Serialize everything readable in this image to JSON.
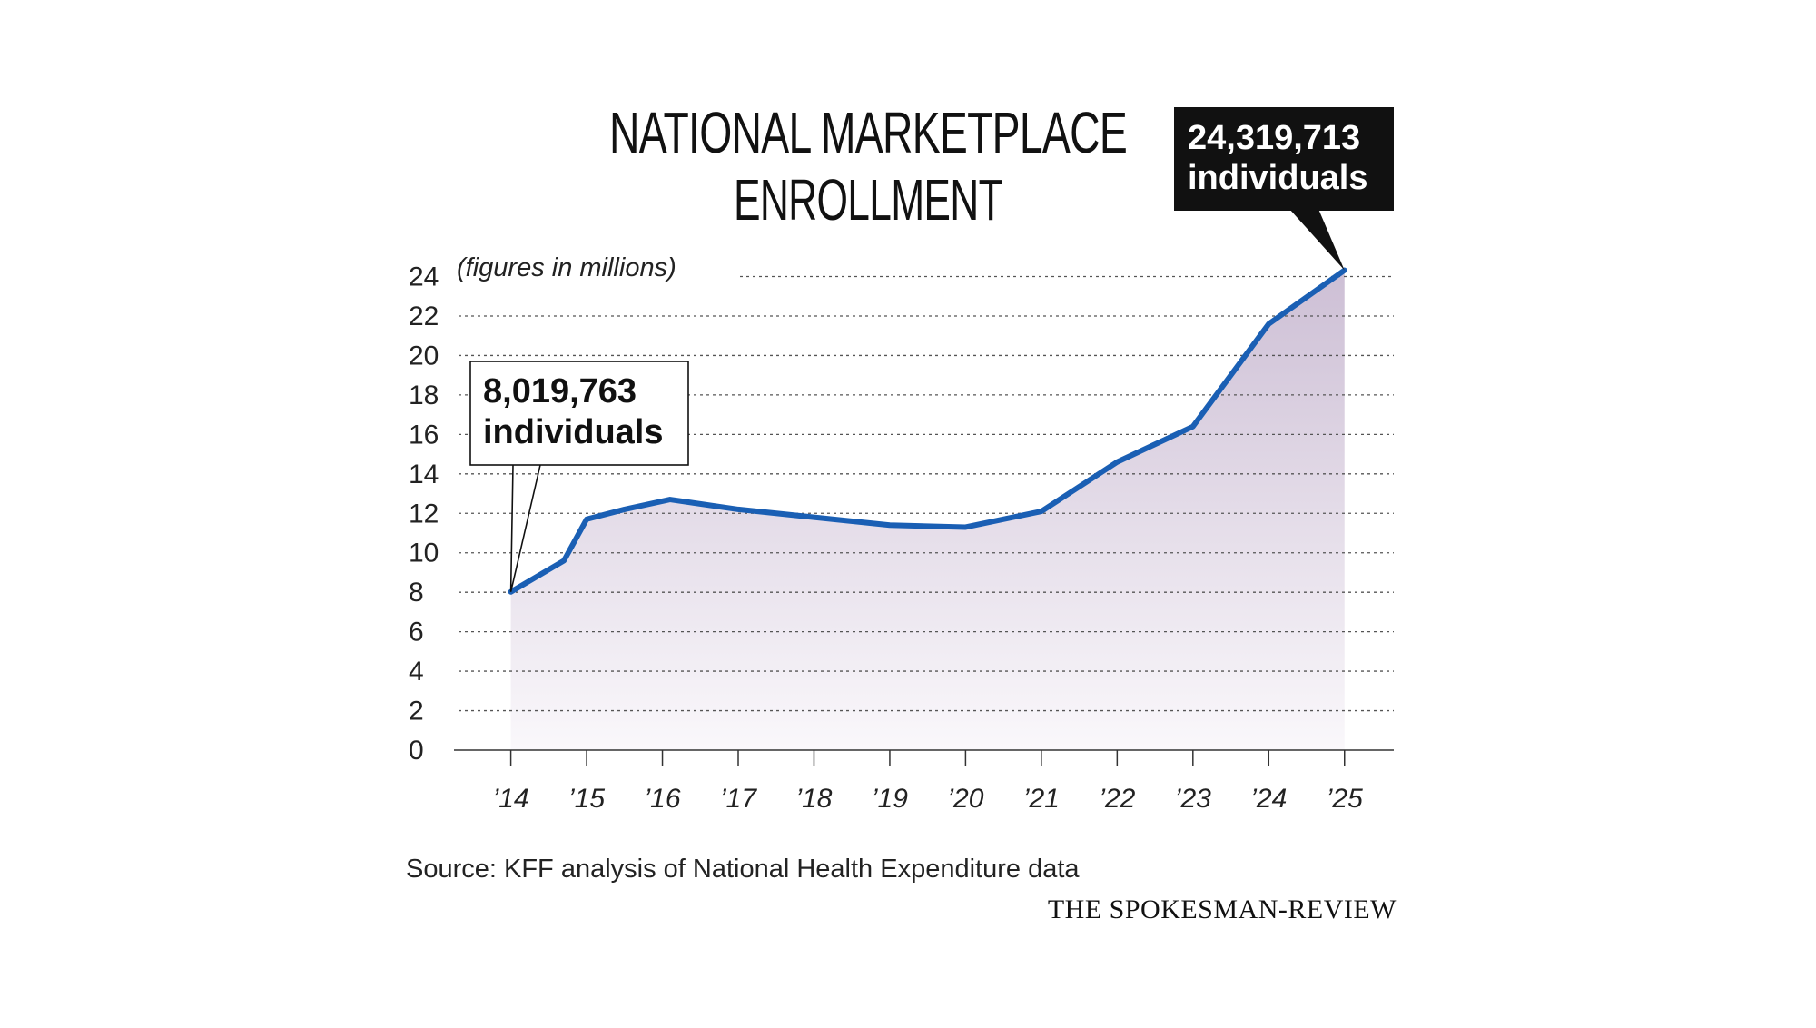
{
  "chart_data": {
    "type": "area",
    "title_lines": [
      "NATIONAL MARKETPLACE",
      "ENROLLMENT"
    ],
    "units_note": "(figures in millions)",
    "x": [
      2014,
      2014.7,
      2015,
      2015.5,
      2016.1,
      2017,
      2018,
      2019,
      2020,
      2021,
      2022,
      2023,
      2024,
      2025
    ],
    "values": [
      8.02,
      9.6,
      11.7,
      12.2,
      12.7,
      12.2,
      11.8,
      11.4,
      11.3,
      12.1,
      14.6,
      16.4,
      21.6,
      24.32
    ],
    "xtick_values": [
      2014,
      2015,
      2016,
      2017,
      2018,
      2019,
      2020,
      2021,
      2022,
      2023,
      2024,
      2025
    ],
    "xtick_labels": [
      "’14",
      "’15",
      "’16",
      "’17",
      "’18",
      "’19",
      "’20",
      "’21",
      "’22",
      "’23",
      "’24",
      "’25"
    ],
    "yticks": [
      0,
      2,
      4,
      6,
      8,
      10,
      12,
      14,
      16,
      18,
      20,
      22,
      24
    ],
    "ylim": [
      0,
      24.3
    ],
    "xlim": [
      2013.25,
      2025.65
    ],
    "grid": true,
    "line_color": "#1a5fb4",
    "fill_color_top": "#cdbfd5",
    "fill_color_bottom": "#faf8fb",
    "annotations": [
      {
        "x": 2014,
        "y": 8.02,
        "line1": "8,019,763",
        "line2": "individuals",
        "style": "outline"
      },
      {
        "x": 2025,
        "y": 24.32,
        "line1": "24,319,713",
        "line2": "individuals",
        "style": "filled"
      }
    ],
    "source": "Source: KFF analysis of National Health Expenditure data",
    "brand": "THE SPOKESMAN-REVIEW"
  }
}
